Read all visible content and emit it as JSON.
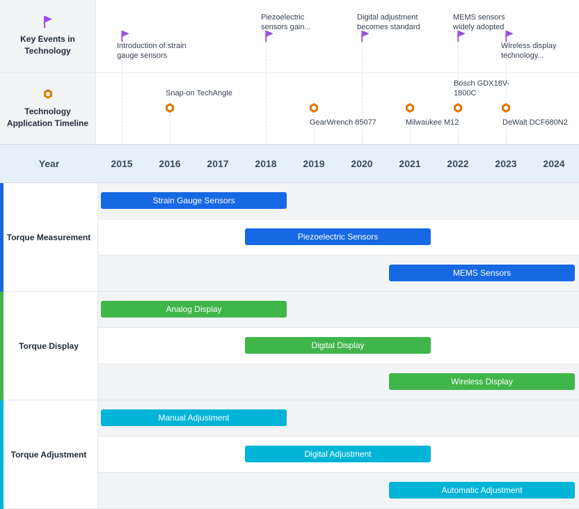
{
  "header": {
    "events_label": "Key Events in Technology",
    "apps_label": "Technology Application Timeline",
    "year_label": "Year"
  },
  "years": [
    "2015",
    "2016",
    "2017",
    "2018",
    "2019",
    "2020",
    "2021",
    "2022",
    "2023",
    "2024"
  ],
  "key_events": [
    {
      "year": 2015,
      "text": "Introduction of strain gauge sensors",
      "lines": [
        "Introduction of strain",
        "gauge sensors"
      ],
      "placement": "below"
    },
    {
      "year": 2018,
      "text": "Piezoelectric sensors gain...",
      "lines": [
        "Piezoelectric",
        "sensors gain..."
      ],
      "placement": "above"
    },
    {
      "year": 2020,
      "text": "Digital adjustment becomes standard",
      "lines": [
        "Digital adjustment",
        "becomes standard"
      ],
      "placement": "above"
    },
    {
      "year": 2022,
      "text": "MEMS sensors widely adopted",
      "lines": [
        "MEMS sensors",
        "widely adopted"
      ],
      "placement": "above"
    },
    {
      "year": 2023,
      "text": "Wireless display technology...",
      "lines": [
        "Wireless display",
        "technology..."
      ],
      "placement": "below"
    }
  ],
  "applications": [
    {
      "year": 2016,
      "lines": [
        "Snap-on TechAngle"
      ],
      "placement": "above"
    },
    {
      "year": 2019,
      "lines": [
        "GearWrench 85077"
      ],
      "placement": "below"
    },
    {
      "year": 2021,
      "lines": [
        "Milwaukee M12"
      ],
      "placement": "below"
    },
    {
      "year": 2022,
      "lines": [
        "Bosch GDX18V-",
        "1800C"
      ],
      "placement": "above"
    },
    {
      "year": 2023,
      "lines": [
        "DeWalt DCF680N2"
      ],
      "placement": "below"
    }
  ],
  "groups": [
    {
      "name": "Torque Measurement",
      "color": "#1668e3",
      "bars": [
        {
          "label": "Strain Gauge Sensors",
          "start": 2015,
          "end": 2018.9
        },
        {
          "label": "Piezoelectric Sensors",
          "start": 2018,
          "end": 2021.9
        },
        {
          "label": "MEMS Sensors",
          "start": 2021,
          "end": 2024.9
        }
      ]
    },
    {
      "name": "Torque Display",
      "color": "#3fb54a",
      "bars": [
        {
          "label": "Analog Display",
          "start": 2015,
          "end": 2018.9
        },
        {
          "label": "Digital Display",
          "start": 2018,
          "end": 2021.9
        },
        {
          "label": "Wireless Display",
          "start": 2021,
          "end": 2024.9
        }
      ]
    },
    {
      "name": "Torque Adjustment",
      "color": "#00b4d8",
      "bars": [
        {
          "label": "Manual Adjustment",
          "start": 2015,
          "end": 2018.9
        },
        {
          "label": "Digital Adjustment",
          "start": 2018,
          "end": 2021.9
        },
        {
          "label": "Automatic Adjustment",
          "start": 2021,
          "end": 2024.9
        }
      ]
    }
  ],
  "colors": {
    "event_flag": "#9b4be8",
    "app_icon": "#e07b0c"
  },
  "icons": {
    "events_header": "flag-icon",
    "apps_header": "hex-nut-icon"
  }
}
